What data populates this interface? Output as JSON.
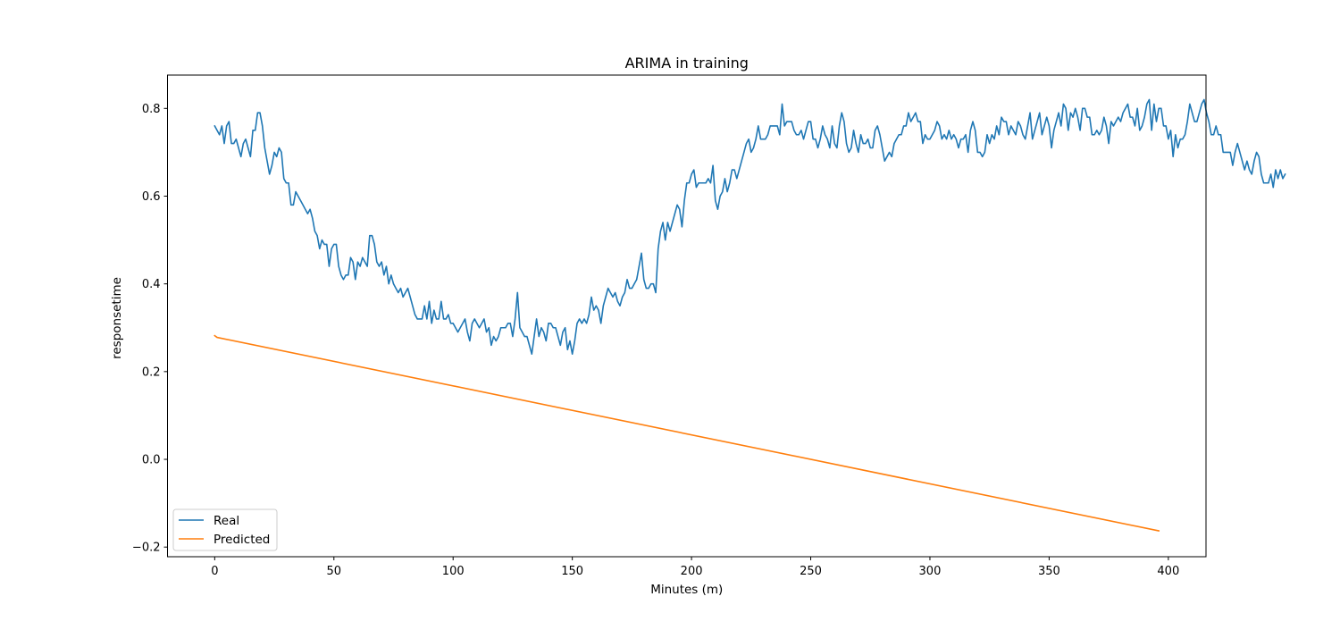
{
  "chart_data": {
    "type": "line",
    "title": "ARIMA in training",
    "xlabel": "Minutes (m)",
    "ylabel": "responsetime",
    "xlim": [
      -19.8,
      415.8
    ],
    "ylim": [
      -0.222,
      0.876
    ],
    "xticks": [
      0,
      50,
      100,
      150,
      200,
      250,
      300,
      350,
      400
    ],
    "yticks": [
      -0.2,
      0.0,
      0.2,
      0.4,
      0.6,
      0.8
    ],
    "xtick_labels": [
      "0",
      "50",
      "100",
      "150",
      "200",
      "250",
      "300",
      "350",
      "400"
    ],
    "ytick_labels": [
      "−0.2",
      "0.0",
      "0.2",
      "0.4",
      "0.6",
      "0.8"
    ],
    "grid": false,
    "legend_position": "lower-left",
    "series": [
      {
        "name": "Real",
        "color": "#1f77b4",
        "x_start": 0,
        "x_step": 1,
        "values": [
          0.76,
          0.75,
          0.74,
          0.76,
          0.72,
          0.76,
          0.77,
          0.72,
          0.72,
          0.73,
          0.71,
          0.69,
          0.72,
          0.73,
          0.71,
          0.69,
          0.75,
          0.75,
          0.79,
          0.79,
          0.76,
          0.71,
          0.68,
          0.65,
          0.67,
          0.7,
          0.69,
          0.71,
          0.7,
          0.64,
          0.63,
          0.63,
          0.58,
          0.58,
          0.61,
          0.6,
          0.59,
          0.58,
          0.57,
          0.56,
          0.57,
          0.55,
          0.52,
          0.51,
          0.48,
          0.5,
          0.49,
          0.49,
          0.44,
          0.48,
          0.49,
          0.49,
          0.44,
          0.42,
          0.41,
          0.42,
          0.42,
          0.46,
          0.45,
          0.41,
          0.45,
          0.44,
          0.46,
          0.45,
          0.44,
          0.51,
          0.51,
          0.49,
          0.45,
          0.44,
          0.45,
          0.42,
          0.44,
          0.4,
          0.42,
          0.4,
          0.39,
          0.38,
          0.39,
          0.37,
          0.38,
          0.39,
          0.37,
          0.35,
          0.33,
          0.32,
          0.32,
          0.32,
          0.35,
          0.32,
          0.36,
          0.31,
          0.34,
          0.32,
          0.32,
          0.36,
          0.32,
          0.32,
          0.33,
          0.31,
          0.31,
          0.3,
          0.29,
          0.3,
          0.31,
          0.32,
          0.29,
          0.27,
          0.31,
          0.32,
          0.31,
          0.3,
          0.31,
          0.32,
          0.29,
          0.3,
          0.26,
          0.28,
          0.27,
          0.28,
          0.3,
          0.3,
          0.3,
          0.31,
          0.31,
          0.28,
          0.32,
          0.38,
          0.3,
          0.29,
          0.28,
          0.28,
          0.26,
          0.24,
          0.28,
          0.32,
          0.28,
          0.3,
          0.29,
          0.27,
          0.31,
          0.31,
          0.3,
          0.3,
          0.28,
          0.26,
          0.29,
          0.3,
          0.25,
          0.27,
          0.24,
          0.27,
          0.31,
          0.32,
          0.31,
          0.32,
          0.31,
          0.33,
          0.37,
          0.34,
          0.35,
          0.34,
          0.31,
          0.35,
          0.37,
          0.39,
          0.38,
          0.37,
          0.38,
          0.36,
          0.35,
          0.37,
          0.38,
          0.41,
          0.39,
          0.39,
          0.4,
          0.41,
          0.44,
          0.47,
          0.41,
          0.39,
          0.39,
          0.4,
          0.4,
          0.38,
          0.48,
          0.52,
          0.54,
          0.5,
          0.54,
          0.52,
          0.54,
          0.56,
          0.58,
          0.57,
          0.53,
          0.59,
          0.63,
          0.63,
          0.65,
          0.66,
          0.62,
          0.63,
          0.63,
          0.63,
          0.63,
          0.64,
          0.63,
          0.67,
          0.59,
          0.57,
          0.6,
          0.61,
          0.64,
          0.61,
          0.63,
          0.66,
          0.66,
          0.64,
          0.66,
          0.68,
          0.7,
          0.72,
          0.73,
          0.7,
          0.71,
          0.73,
          0.76,
          0.73,
          0.73,
          0.73,
          0.74,
          0.76,
          0.76,
          0.76,
          0.76,
          0.74,
          0.81,
          0.76,
          0.77,
          0.77,
          0.77,
          0.75,
          0.74,
          0.74,
          0.75,
          0.73,
          0.75,
          0.77,
          0.77,
          0.73,
          0.73,
          0.71,
          0.73,
          0.76,
          0.74,
          0.73,
          0.71,
          0.76,
          0.72,
          0.71,
          0.76,
          0.79,
          0.77,
          0.72,
          0.7,
          0.71,
          0.75,
          0.72,
          0.7,
          0.74,
          0.72,
          0.72,
          0.73,
          0.71,
          0.71,
          0.75,
          0.76,
          0.74,
          0.71,
          0.68,
          0.69,
          0.7,
          0.69,
          0.72,
          0.73,
          0.74,
          0.74,
          0.76,
          0.76,
          0.79,
          0.77,
          0.78,
          0.79,
          0.77,
          0.77,
          0.72,
          0.74,
          0.73,
          0.73,
          0.74,
          0.75,
          0.77,
          0.76,
          0.73,
          0.74,
          0.73,
          0.75,
          0.73,
          0.74,
          0.73,
          0.71,
          0.73,
          0.73,
          0.74,
          0.7,
          0.75,
          0.77,
          0.75,
          0.7,
          0.7,
          0.69,
          0.7,
          0.74,
          0.72,
          0.74,
          0.73,
          0.76,
          0.74,
          0.78,
          0.77,
          0.77,
          0.74,
          0.76,
          0.75,
          0.74,
          0.77,
          0.76,
          0.74,
          0.73,
          0.76,
          0.79,
          0.73,
          0.75,
          0.77,
          0.79,
          0.74,
          0.76,
          0.78,
          0.76,
          0.71,
          0.75,
          0.77,
          0.79,
          0.76,
          0.81,
          0.8,
          0.75,
          0.79,
          0.78,
          0.8,
          0.78,
          0.75,
          0.8,
          0.8,
          0.78,
          0.78,
          0.74,
          0.74,
          0.75,
          0.74,
          0.75,
          0.78,
          0.76,
          0.72,
          0.77,
          0.76,
          0.77,
          0.78,
          0.77,
          0.79,
          0.8,
          0.81,
          0.78,
          0.78,
          0.76,
          0.8,
          0.75,
          0.76,
          0.78,
          0.81,
          0.82,
          0.75,
          0.81,
          0.77,
          0.8,
          0.8,
          0.76,
          0.76,
          0.73,
          0.75,
          0.69,
          0.74,
          0.71,
          0.73,
          0.73,
          0.74,
          0.77,
          0.81,
          0.79,
          0.77,
          0.77,
          0.79,
          0.81,
          0.82,
          0.79,
          0.77,
          0.74,
          0.74,
          0.76,
          0.74,
          0.74,
          0.7,
          0.7,
          0.7,
          0.7,
          0.67,
          0.7,
          0.72,
          0.7,
          0.68,
          0.66,
          0.68,
          0.66,
          0.65,
          0.68,
          0.7,
          0.69,
          0.65,
          0.63,
          0.63,
          0.63,
          0.65,
          0.62,
          0.66,
          0.64,
          0.66,
          0.64,
          0.65
        ]
      },
      {
        "name": "Predicted",
        "color": "#ff7f0e",
        "x": [
          0,
          1,
          396
        ],
        "values": [
          0.282,
          0.278,
          -0.163
        ]
      }
    ]
  }
}
